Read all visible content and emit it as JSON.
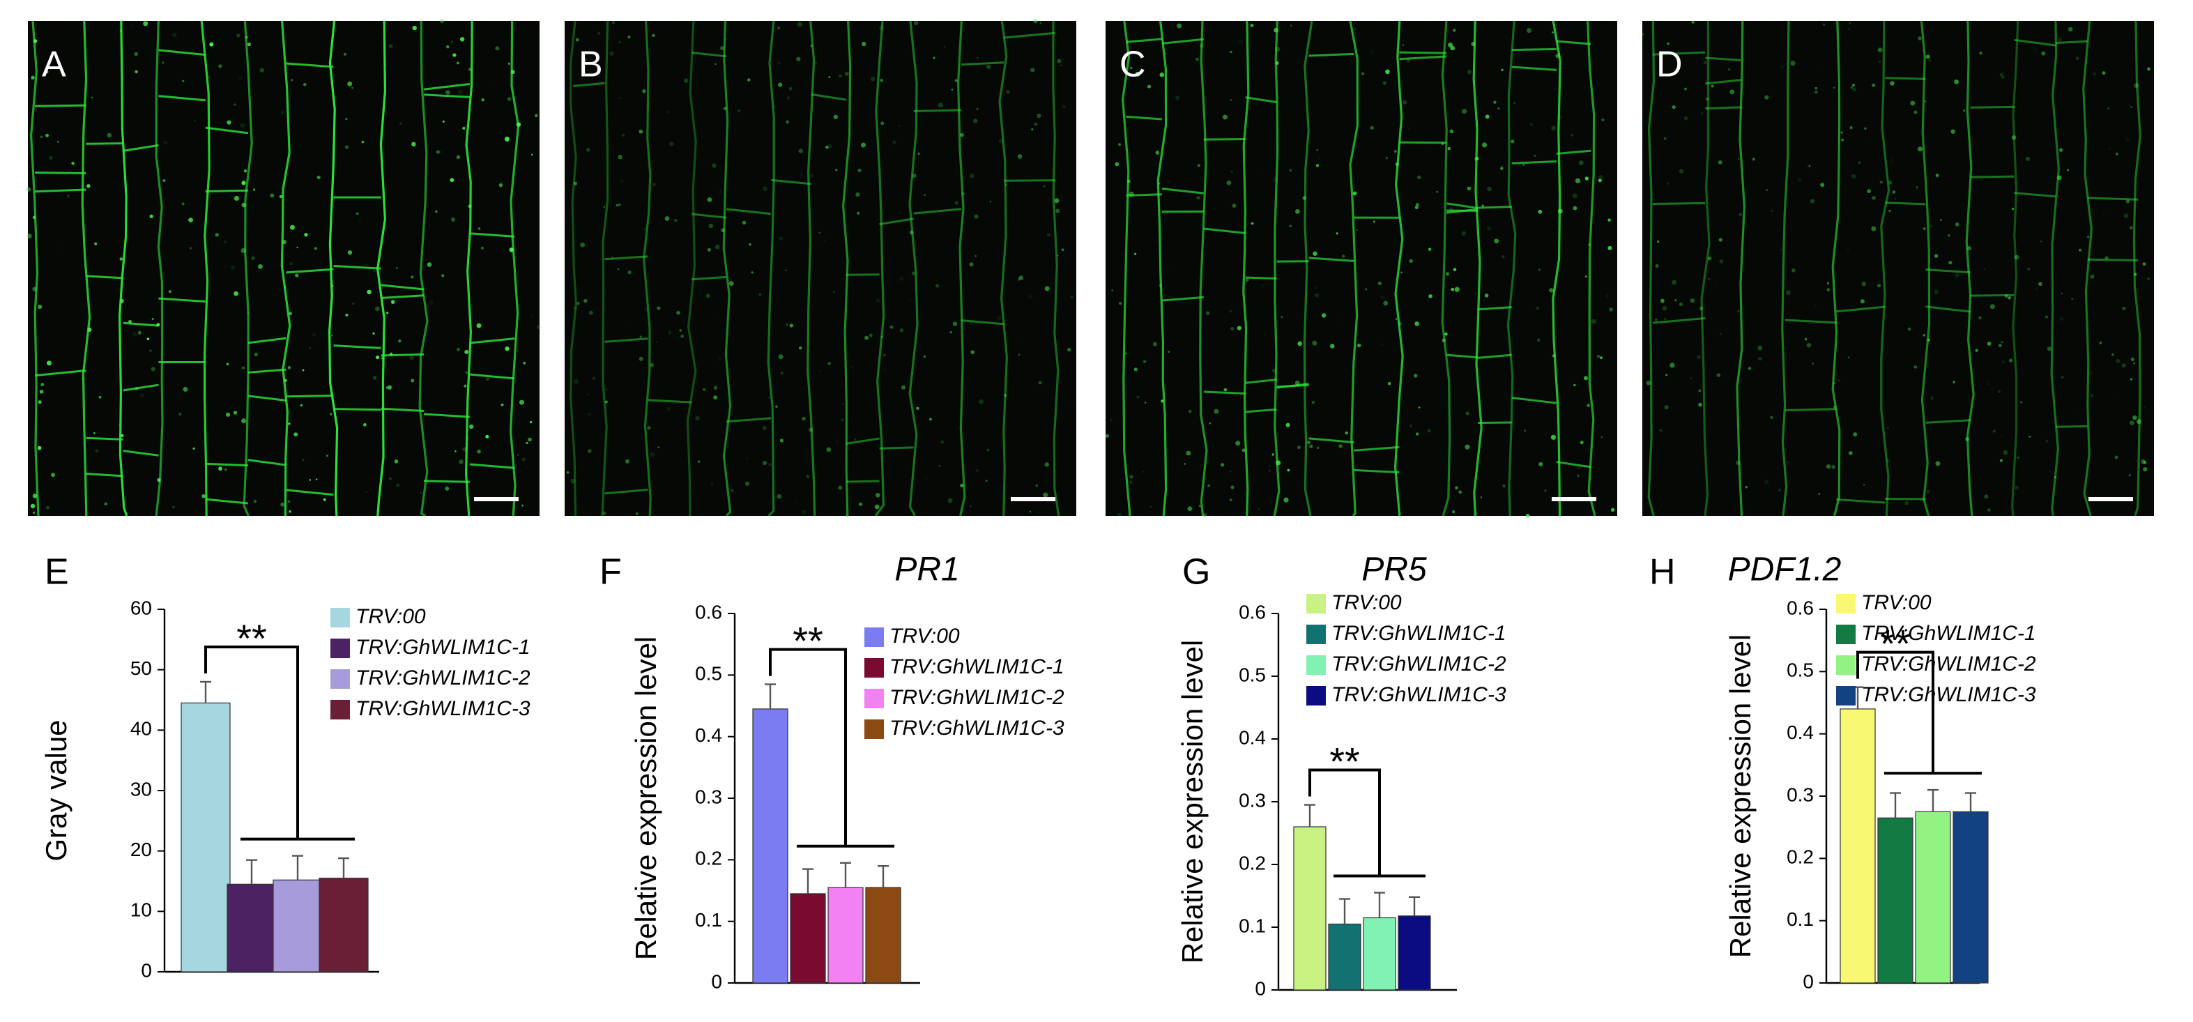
{
  "image_panels": [
    {
      "label": "A"
    },
    {
      "label": "B"
    },
    {
      "label": "C"
    },
    {
      "label": "D"
    }
  ],
  "chart_data": [
    {
      "type": "bar",
      "panel_label": "E",
      "y_label": "Gray value",
      "annotation": "**",
      "ylim": [
        0,
        60
      ],
      "yticks": [
        0,
        10,
        20,
        30,
        40,
        50,
        60
      ],
      "series": [
        {
          "name": "TRV:00",
          "color": "#a6d6df",
          "values": [
            44.5
          ],
          "errors": [
            3.5
          ]
        },
        {
          "name": "TRV:GhWLIM1C-1",
          "color": "#4c2262",
          "values": [
            14.5
          ],
          "errors": [
            4
          ]
        },
        {
          "name": "TRV:GhWLIM1C-2",
          "color": "#a79bdb",
          "values": [
            15.2
          ],
          "errors": [
            4
          ]
        },
        {
          "name": "TRV:GhWLIM1C-3",
          "color": "#6a1f36",
          "values": [
            15.5
          ],
          "errors": [
            3.3
          ]
        }
      ]
    },
    {
      "type": "bar",
      "panel_label": "F",
      "title": "PR1",
      "y_label": "Relative expression level",
      "annotation": "**",
      "ylim": [
        0,
        0.6
      ],
      "yticks": [
        0,
        0.1,
        0.2,
        0.3,
        0.4,
        0.5,
        0.6
      ],
      "series": [
        {
          "name": "TRV:00",
          "color": "#7c7cf2",
          "values": [
            0.445
          ],
          "errors": [
            0.04
          ]
        },
        {
          "name": "TRV:GhWLIM1C-1",
          "color": "#7a0a30",
          "values": [
            0.145
          ],
          "errors": [
            0.04
          ]
        },
        {
          "name": "TRV:GhWLIM1C-2",
          "color": "#f282f2",
          "values": [
            0.155
          ],
          "errors": [
            0.04
          ]
        },
        {
          "name": "TRV:GhWLIM1C-3",
          "color": "#8a4a12",
          "values": [
            0.155
          ],
          "errors": [
            0.035
          ]
        }
      ]
    },
    {
      "type": "bar",
      "panel_label": "G",
      "title": "PR5",
      "y_label": "Relative expression level",
      "annotation": "**",
      "ylim": [
        0,
        0.6
      ],
      "yticks": [
        0,
        0.1,
        0.2,
        0.3,
        0.4,
        0.5,
        0.6
      ],
      "series": [
        {
          "name": "TRV:00",
          "color": "#c8f282",
          "values": [
            0.26
          ],
          "errors": [
            0.035
          ]
        },
        {
          "name": "TRV:GhWLIM1C-1",
          "color": "#127272",
          "values": [
            0.105
          ],
          "errors": [
            0.04
          ]
        },
        {
          "name": "TRV:GhWLIM1C-2",
          "color": "#82f2b2",
          "values": [
            0.115
          ],
          "errors": [
            0.04
          ]
        },
        {
          "name": "TRV:GhWLIM1C-3",
          "color": "#0c0c82",
          "values": [
            0.118
          ],
          "errors": [
            0.03
          ]
        }
      ]
    },
    {
      "type": "bar",
      "panel_label": "H",
      "title": "PDF1.2",
      "y_label": "Relative expression level",
      "annotation": "**",
      "ylim": [
        0,
        0.6
      ],
      "yticks": [
        0,
        0.1,
        0.2,
        0.3,
        0.4,
        0.5,
        0.6
      ],
      "series": [
        {
          "name": "TRV:00",
          "color": "#f8f872",
          "values": [
            0.44
          ],
          "errors": [
            0.035
          ]
        },
        {
          "name": "TRV:GhWLIM1C-1",
          "color": "#127a42",
          "values": [
            0.265
          ],
          "errors": [
            0.04
          ]
        },
        {
          "name": "TRV:GhWLIM1C-2",
          "color": "#92f282",
          "values": [
            0.275
          ],
          "errors": [
            0.035
          ]
        },
        {
          "name": "TRV:GhWLIM1C-3",
          "color": "#124282",
          "values": [
            0.275
          ],
          "errors": [
            0.03
          ]
        }
      ]
    }
  ]
}
